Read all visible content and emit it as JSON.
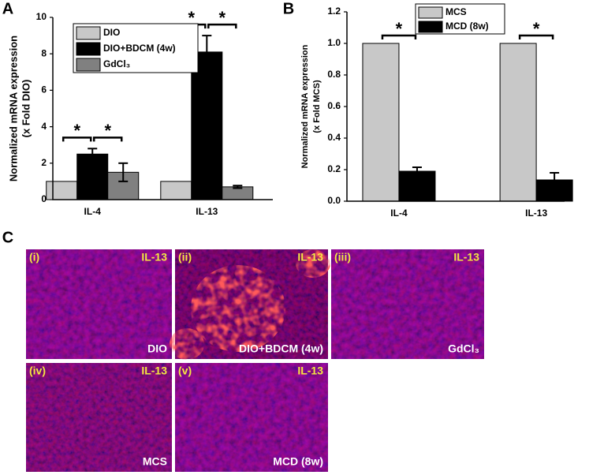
{
  "chart_data": [
    {
      "type": "bar",
      "panel": "A",
      "ylabel": [
        "Normalized mRNA expression",
        "(x Fold DIO)"
      ],
      "categories": [
        "IL-4",
        "IL-13"
      ],
      "series": [
        {
          "name": "DIO",
          "color": "#c8c8c8",
          "values": [
            1,
            1
          ]
        },
        {
          "name": "DIO+BDCM (4w)",
          "color": "#000000",
          "values": [
            2.5,
            8.1
          ],
          "errors": [
            0.3,
            0.9
          ]
        },
        {
          "name": "GdCl₃",
          "color": "#808080",
          "values": [
            1.5,
            0.7
          ],
          "errors": [
            0.5,
            0.07
          ]
        }
      ],
      "ylim": [
        0,
        10
      ],
      "yticks": [
        0,
        2,
        4,
        6,
        8,
        10
      ],
      "significance": [
        {
          "category": "IL-4",
          "pair": [
            "DIO",
            "DIO+BDCM (4w)"
          ],
          "label": "*"
        },
        {
          "category": "IL-4",
          "pair": [
            "DIO+BDCM (4w)",
            "GdCl₃"
          ],
          "label": "*"
        },
        {
          "category": "IL-13",
          "pair": [
            "DIO",
            "DIO+BDCM (4w)"
          ],
          "label": "*"
        },
        {
          "category": "IL-13",
          "pair": [
            "DIO+BDCM (4w)",
            "GdCl₃"
          ],
          "label": "*"
        }
      ]
    },
    {
      "type": "bar",
      "panel": "B",
      "ylabel": [
        "Normalized mRNA expression",
        "(x Fold MCS)"
      ],
      "categories": [
        "IL-4",
        "IL-13"
      ],
      "series": [
        {
          "name": "MCS",
          "color": "#c8c8c8",
          "values": [
            1.0,
            1.0
          ]
        },
        {
          "name": "MCD (8w)",
          "color": "#000000",
          "values": [
            0.19,
            0.135
          ],
          "errors": [
            0.025,
            0.045
          ]
        }
      ],
      "ylim": [
        0,
        1.2
      ],
      "yticks": [
        {
          "value": 0,
          "label": "0.0"
        },
        0.2,
        0.4,
        0.6,
        0.8,
        {
          "value": 1.0,
          "label": "1.0"
        },
        1.2
      ],
      "significance": [
        {
          "category": "IL-4",
          "pair": [
            "MCS",
            "MCD (8w)"
          ],
          "label": "*"
        },
        {
          "category": "IL-13",
          "pair": [
            "MCS",
            "MCD (8w)"
          ],
          "label": "*"
        }
      ]
    }
  ],
  "panel_c": {
    "label": "C",
    "images": [
      {
        "numeral": "(i)",
        "marker": "IL-13",
        "condition": "DIO"
      },
      {
        "numeral": "(ii)",
        "marker": "IL-13",
        "condition": "DIO+BDCM (4w)"
      },
      {
        "numeral": "(iii)",
        "marker": "IL-13",
        "condition": "GdCl₃"
      },
      {
        "numeral": "(iv)",
        "marker": "IL-13",
        "condition": "MCS"
      },
      {
        "numeral": "(v)",
        "marker": "IL-13",
        "condition": "MCD (8w)"
      }
    ]
  }
}
